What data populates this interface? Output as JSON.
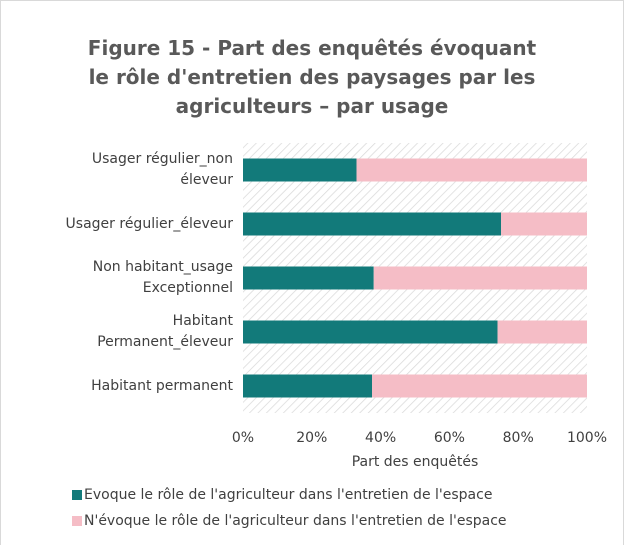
{
  "chart_data": {
    "type": "stacked_bar_horizontal",
    "title": "Figure 15 - Part des enquêtés évoquant\nle rôle d'entretien des paysages par les\nagriculteurs – par usage",
    "categories": [
      "Usager régulier_non\néleveur",
      "Usager régulier_éleveur",
      "Non habitant_usage\nExceptionnel",
      "Habitant\nPermanent_éleveur",
      "Habitant permanent"
    ],
    "series": [
      {
        "name": "Evoque le rôle de l'agriculteur dans l'entretien de l'espace",
        "color": "#127a7a",
        "values": [
          33,
          75,
          38,
          74,
          37.5
        ]
      },
      {
        "name": "N'évoque le rôle de l'agriculteur dans l'entretien de l'espace",
        "color": "#f5bdc6",
        "values": [
          67,
          25,
          62,
          26,
          62.5
        ]
      }
    ],
    "xlabel": "Part des enquêtés",
    "xlim": [
      0,
      100
    ],
    "xticks": [
      {
        "value": 0,
        "label": "0%"
      },
      {
        "value": 20,
        "label": "20%"
      },
      {
        "value": 40,
        "label": "40%"
      },
      {
        "value": 60,
        "label": "60%"
      },
      {
        "value": 80,
        "label": "80%"
      },
      {
        "value": 100,
        "label": "100%"
      }
    ],
    "legend": "bottom"
  }
}
